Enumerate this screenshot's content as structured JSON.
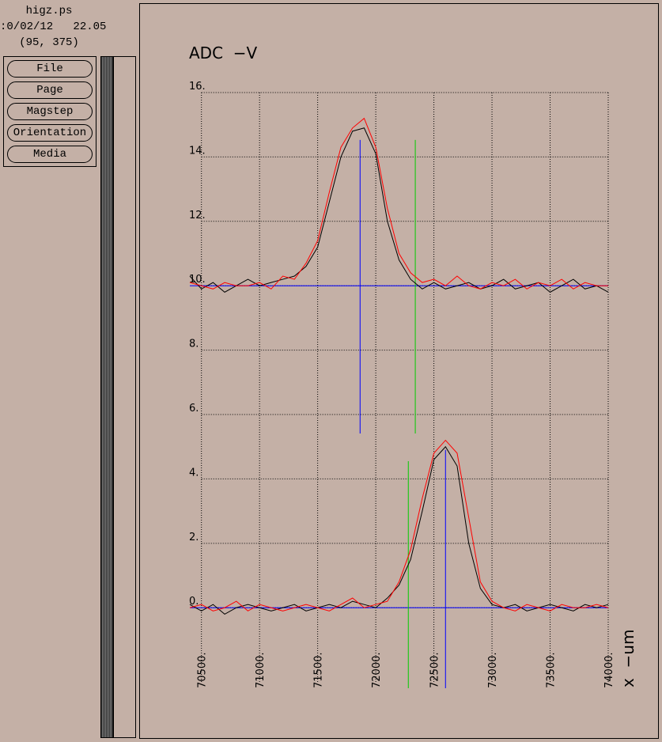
{
  "window": {
    "title": "higz.ps",
    "time": ":0/02/12   22.05",
    "coords": "(95, 375)",
    "buttons": [
      "File",
      "Page",
      "Magstep",
      "Orientation",
      "Media"
    ]
  },
  "chart_data": {
    "type": "line",
    "title": "ADC  −V",
    "x_label": "x  −um",
    "x": [
      70400,
      70500,
      70600,
      70700,
      70800,
      70900,
      71000,
      71100,
      71200,
      71300,
      71400,
      71500,
      71600,
      71700,
      71800,
      71900,
      72000,
      72100,
      72200,
      72300,
      72400,
      72500,
      72600,
      72700,
      72800,
      72900,
      73000,
      73100,
      73200,
      73300,
      73400,
      73500,
      73600,
      73700,
      73800,
      73900,
      74000
    ],
    "series": [
      {
        "color": "#000000",
        "values": [
          10.3,
          9.9,
          10.1,
          9.8,
          10.0,
          10.2,
          10.0,
          10.1,
          10.2,
          10.3,
          10.6,
          11.2,
          12.6,
          14.0,
          14.8,
          14.9,
          14.1,
          12.0,
          10.8,
          10.2,
          9.9,
          10.1,
          9.9,
          10.0,
          10.1,
          9.9,
          10.0,
          10.2,
          9.9,
          10.0,
          10.1,
          9.8,
          10.0,
          10.2,
          9.9,
          10.0,
          9.8
        ]
      },
      {
        "color": "#ff0000",
        "values": [
          10.1,
          10.0,
          9.9,
          10.1,
          10.0,
          10.0,
          10.1,
          9.9,
          10.3,
          10.2,
          10.7,
          11.4,
          12.9,
          14.3,
          14.9,
          15.2,
          14.3,
          12.4,
          11.0,
          10.4,
          10.1,
          10.2,
          10.0,
          10.3,
          10.0,
          9.9,
          10.1,
          10.0,
          10.2,
          9.9,
          10.1,
          10.0,
          10.2,
          9.9,
          10.1,
          10.0,
          10.0
        ]
      },
      {
        "color": "#000000",
        "values": [
          0.1,
          -0.1,
          0.1,
          -0.2,
          0.0,
          0.1,
          0.0,
          -0.1,
          0.0,
          0.1,
          -0.1,
          0.0,
          0.1,
          0.0,
          0.2,
          0.1,
          0.0,
          0.3,
          0.7,
          1.5,
          3.0,
          4.6,
          5.0,
          4.4,
          2.0,
          0.6,
          0.1,
          0.0,
          0.1,
          -0.1,
          0.0,
          0.1,
          0.0,
          -0.1,
          0.1,
          0.0,
          0.1
        ]
      },
      {
        "color": "#ff0000",
        "values": [
          0.0,
          0.1,
          -0.1,
          0.0,
          0.2,
          -0.1,
          0.1,
          0.0,
          -0.1,
          0.0,
          0.1,
          0.0,
          -0.1,
          0.1,
          0.3,
          0.0,
          0.1,
          0.2,
          0.8,
          1.8,
          3.4,
          4.8,
          5.2,
          4.8,
          2.8,
          0.8,
          0.2,
          0.0,
          -0.1,
          0.1,
          0.0,
          -0.1,
          0.1,
          0.0,
          0.0,
          0.1,
          0.0
        ]
      }
    ],
    "reference_lines": [
      {
        "x": 71865,
        "y": [
          5.41,
          14.53
        ],
        "color": "#0000ff"
      },
      {
        "x": 72340,
        "y": [
          5.41,
          14.53
        ],
        "color": "#00cc00"
      },
      {
        "x": 72280,
        "y": [
          -2.5,
          4.55
        ],
        "color": "#00cc00"
      },
      {
        "x": 72600,
        "y": [
          -2.5,
          4.9
        ],
        "color": "#0000ff"
      }
    ],
    "horizontal_lines": [
      {
        "y": 10,
        "color": "#0000ff"
      },
      {
        "y": 0,
        "color": "#0000ff"
      }
    ],
    "xlim": [
      70400,
      74000
    ],
    "ylim": [
      -2.5,
      16
    ],
    "xticks": [
      {
        "value": 70500,
        "label": "70500."
      },
      {
        "value": 71000,
        "label": "71000."
      },
      {
        "value": 71500,
        "label": "71500."
      },
      {
        "value": 72000,
        "label": "72000."
      },
      {
        "value": 72500,
        "label": "72500."
      },
      {
        "value": 73000,
        "label": "73000."
      },
      {
        "value": 73500,
        "label": "73500."
      },
      {
        "value": 74000,
        "label": "74000."
      }
    ],
    "yticks": [
      {
        "value": 0,
        "label": "0."
      },
      {
        "value": 2,
        "label": "2."
      },
      {
        "value": 4,
        "label": "4."
      },
      {
        "value": 6,
        "label": "6."
      },
      {
        "value": 8,
        "label": "8."
      },
      {
        "value": 10,
        "label": "10."
      },
      {
        "value": 12,
        "label": "12."
      },
      {
        "value": 14,
        "label": "14."
      },
      {
        "value": 16,
        "label": "16."
      }
    ],
    "grid": true
  }
}
